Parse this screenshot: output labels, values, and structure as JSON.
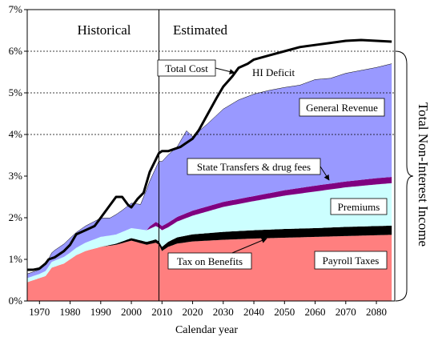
{
  "chart_data": {
    "type": "area",
    "xlabel": "Calendar year",
    "ylabel": "",
    "xlim": [
      1966,
      2086
    ],
    "ylim": [
      0,
      7
    ],
    "x_ticks": [
      "1970",
      "1980",
      "1990",
      "2000",
      "2010",
      "2020",
      "2030",
      "2040",
      "2050",
      "2060",
      "2070",
      "2080"
    ],
    "y_ticks": [
      "0%",
      "1%",
      "2%",
      "3%",
      "4%",
      "5%",
      "6%",
      "7%"
    ],
    "y_gridlines": [
      4,
      5,
      6
    ],
    "divider_x": 2009,
    "region_labels": {
      "historical": "Historical",
      "estimated": "Estimated"
    },
    "side_label": "Total Non-Interest Income",
    "colors": {
      "payroll_taxes": "#ff7f7f",
      "tax_on_benefits": "#000000",
      "premiums": "#ccffff",
      "state_transfers": "#800080",
      "general_revenue": "#9999ff",
      "total_cost": "#000000"
    },
    "series": [
      {
        "name": "Payroll Taxes",
        "key": "payroll_taxes",
        "x": [
          1966,
          1968,
          1970,
          1972,
          1974,
          1976,
          1978,
          1980,
          1982,
          1985,
          1990,
          1995,
          2000,
          2005,
          2008,
          2009,
          2010,
          2012,
          2015,
          2020,
          2030,
          2040,
          2050,
          2060,
          2070,
          2080,
          2085
        ],
        "values": [
          0.45,
          0.5,
          0.55,
          0.6,
          0.8,
          0.85,
          0.9,
          1.0,
          1.1,
          1.2,
          1.3,
          1.35,
          1.45,
          1.35,
          1.4,
          1.35,
          1.2,
          1.3,
          1.38,
          1.43,
          1.47,
          1.5,
          1.52,
          1.54,
          1.56,
          1.58,
          1.59
        ]
      },
      {
        "name": "Tax on Benefits",
        "key": "tax_on_benefits",
        "x": [
          1966,
          1970,
          1980,
          1990,
          1994,
          2000,
          2005,
          2008,
          2009,
          2010,
          2012,
          2015,
          2020,
          2030,
          2040,
          2050,
          2060,
          2070,
          2080,
          2085
        ],
        "values": [
          0.0,
          0.0,
          0.0,
          0.0,
          0.02,
          0.06,
          0.07,
          0.08,
          0.08,
          0.1,
          0.12,
          0.15,
          0.17,
          0.19,
          0.2,
          0.21,
          0.21,
          0.22,
          0.22,
          0.22
        ]
      },
      {
        "name": "Premiums",
        "key": "premiums",
        "x": [
          1966,
          1970,
          1974,
          1978,
          1980,
          1985,
          1990,
          1995,
          2000,
          2005,
          2008,
          2009,
          2010,
          2012,
          2015,
          2020,
          2030,
          2040,
          2050,
          2060,
          2070,
          2080,
          2085
        ],
        "values": [
          0.1,
          0.1,
          0.14,
          0.16,
          0.16,
          0.2,
          0.24,
          0.22,
          0.24,
          0.28,
          0.32,
          0.33,
          0.4,
          0.35,
          0.38,
          0.45,
          0.6,
          0.7,
          0.8,
          0.88,
          0.95,
          1.0,
          1.02
        ]
      },
      {
        "name": "State Transfers & drug fees",
        "key": "state_transfers",
        "x": [
          1966,
          2005,
          2006,
          2008,
          2009,
          2010,
          2012,
          2015,
          2020,
          2030,
          2040,
          2050,
          2060,
          2070,
          2080,
          2085
        ],
        "values": [
          0.0,
          0.0,
          0.06,
          0.1,
          0.1,
          0.1,
          0.11,
          0.11,
          0.12,
          0.12,
          0.12,
          0.13,
          0.14,
          0.14,
          0.15,
          0.15
        ]
      },
      {
        "name": "General Revenue",
        "key": "general_revenue",
        "x": [
          1966,
          1970,
          1972,
          1975,
          1980,
          1985,
          1990,
          1993,
          1995,
          1997,
          2000,
          2003,
          2005,
          2008,
          2009,
          2010,
          2012,
          2015,
          2018,
          2020,
          2025,
          2030,
          2035,
          2040,
          2045,
          2050,
          2055,
          2060,
          2065,
          2070,
          2080,
          2085
        ],
        "values": [
          0.1,
          0.1,
          0.15,
          0.25,
          0.35,
          0.4,
          0.45,
          0.42,
          0.48,
          0.52,
          0.6,
          0.6,
          0.98,
          1.3,
          1.5,
          1.55,
          1.63,
          1.69,
          1.98,
          1.78,
          1.99,
          2.23,
          2.38,
          2.45,
          2.47,
          2.47,
          2.47,
          2.55,
          2.53,
          2.6,
          2.66,
          2.72
        ]
      },
      {
        "name": "Total Cost",
        "key": "total_cost",
        "type": "line",
        "x": [
          1966,
          1968,
          1970,
          1972,
          1973,
          1975,
          1978,
          1980,
          1982,
          1985,
          1988,
          1990,
          1993,
          1995,
          1997,
          1999,
          2000,
          2002,
          2004,
          2006,
          2008,
          2009,
          2010,
          2012,
          2014,
          2016,
          2018,
          2020,
          2022,
          2025,
          2028,
          2030,
          2033,
          2035,
          2038,
          2040,
          2045,
          2050,
          2055,
          2060,
          2065,
          2070,
          2075,
          2080,
          2085
        ],
        "values": [
          0.75,
          0.75,
          0.78,
          0.9,
          1.0,
          1.05,
          1.2,
          1.35,
          1.6,
          1.7,
          1.8,
          2.0,
          2.3,
          2.5,
          2.5,
          2.3,
          2.25,
          2.45,
          2.6,
          3.1,
          3.4,
          3.55,
          3.6,
          3.6,
          3.65,
          3.7,
          3.8,
          3.9,
          4.1,
          4.5,
          4.9,
          5.15,
          5.4,
          5.6,
          5.7,
          5.8,
          5.9,
          6.0,
          6.1,
          6.15,
          6.2,
          6.25,
          6.27,
          6.25,
          6.23
        ]
      }
    ],
    "annotations": {
      "total_cost": "Total Cost",
      "hi_deficit": "HI Deficit",
      "general_revenue": "General Revenue",
      "state_transfers": "State Transfers & drug fees",
      "premiums": "Premiums",
      "tax_on_benefits": "Tax on Benefits",
      "payroll_taxes": "Payroll Taxes"
    }
  }
}
